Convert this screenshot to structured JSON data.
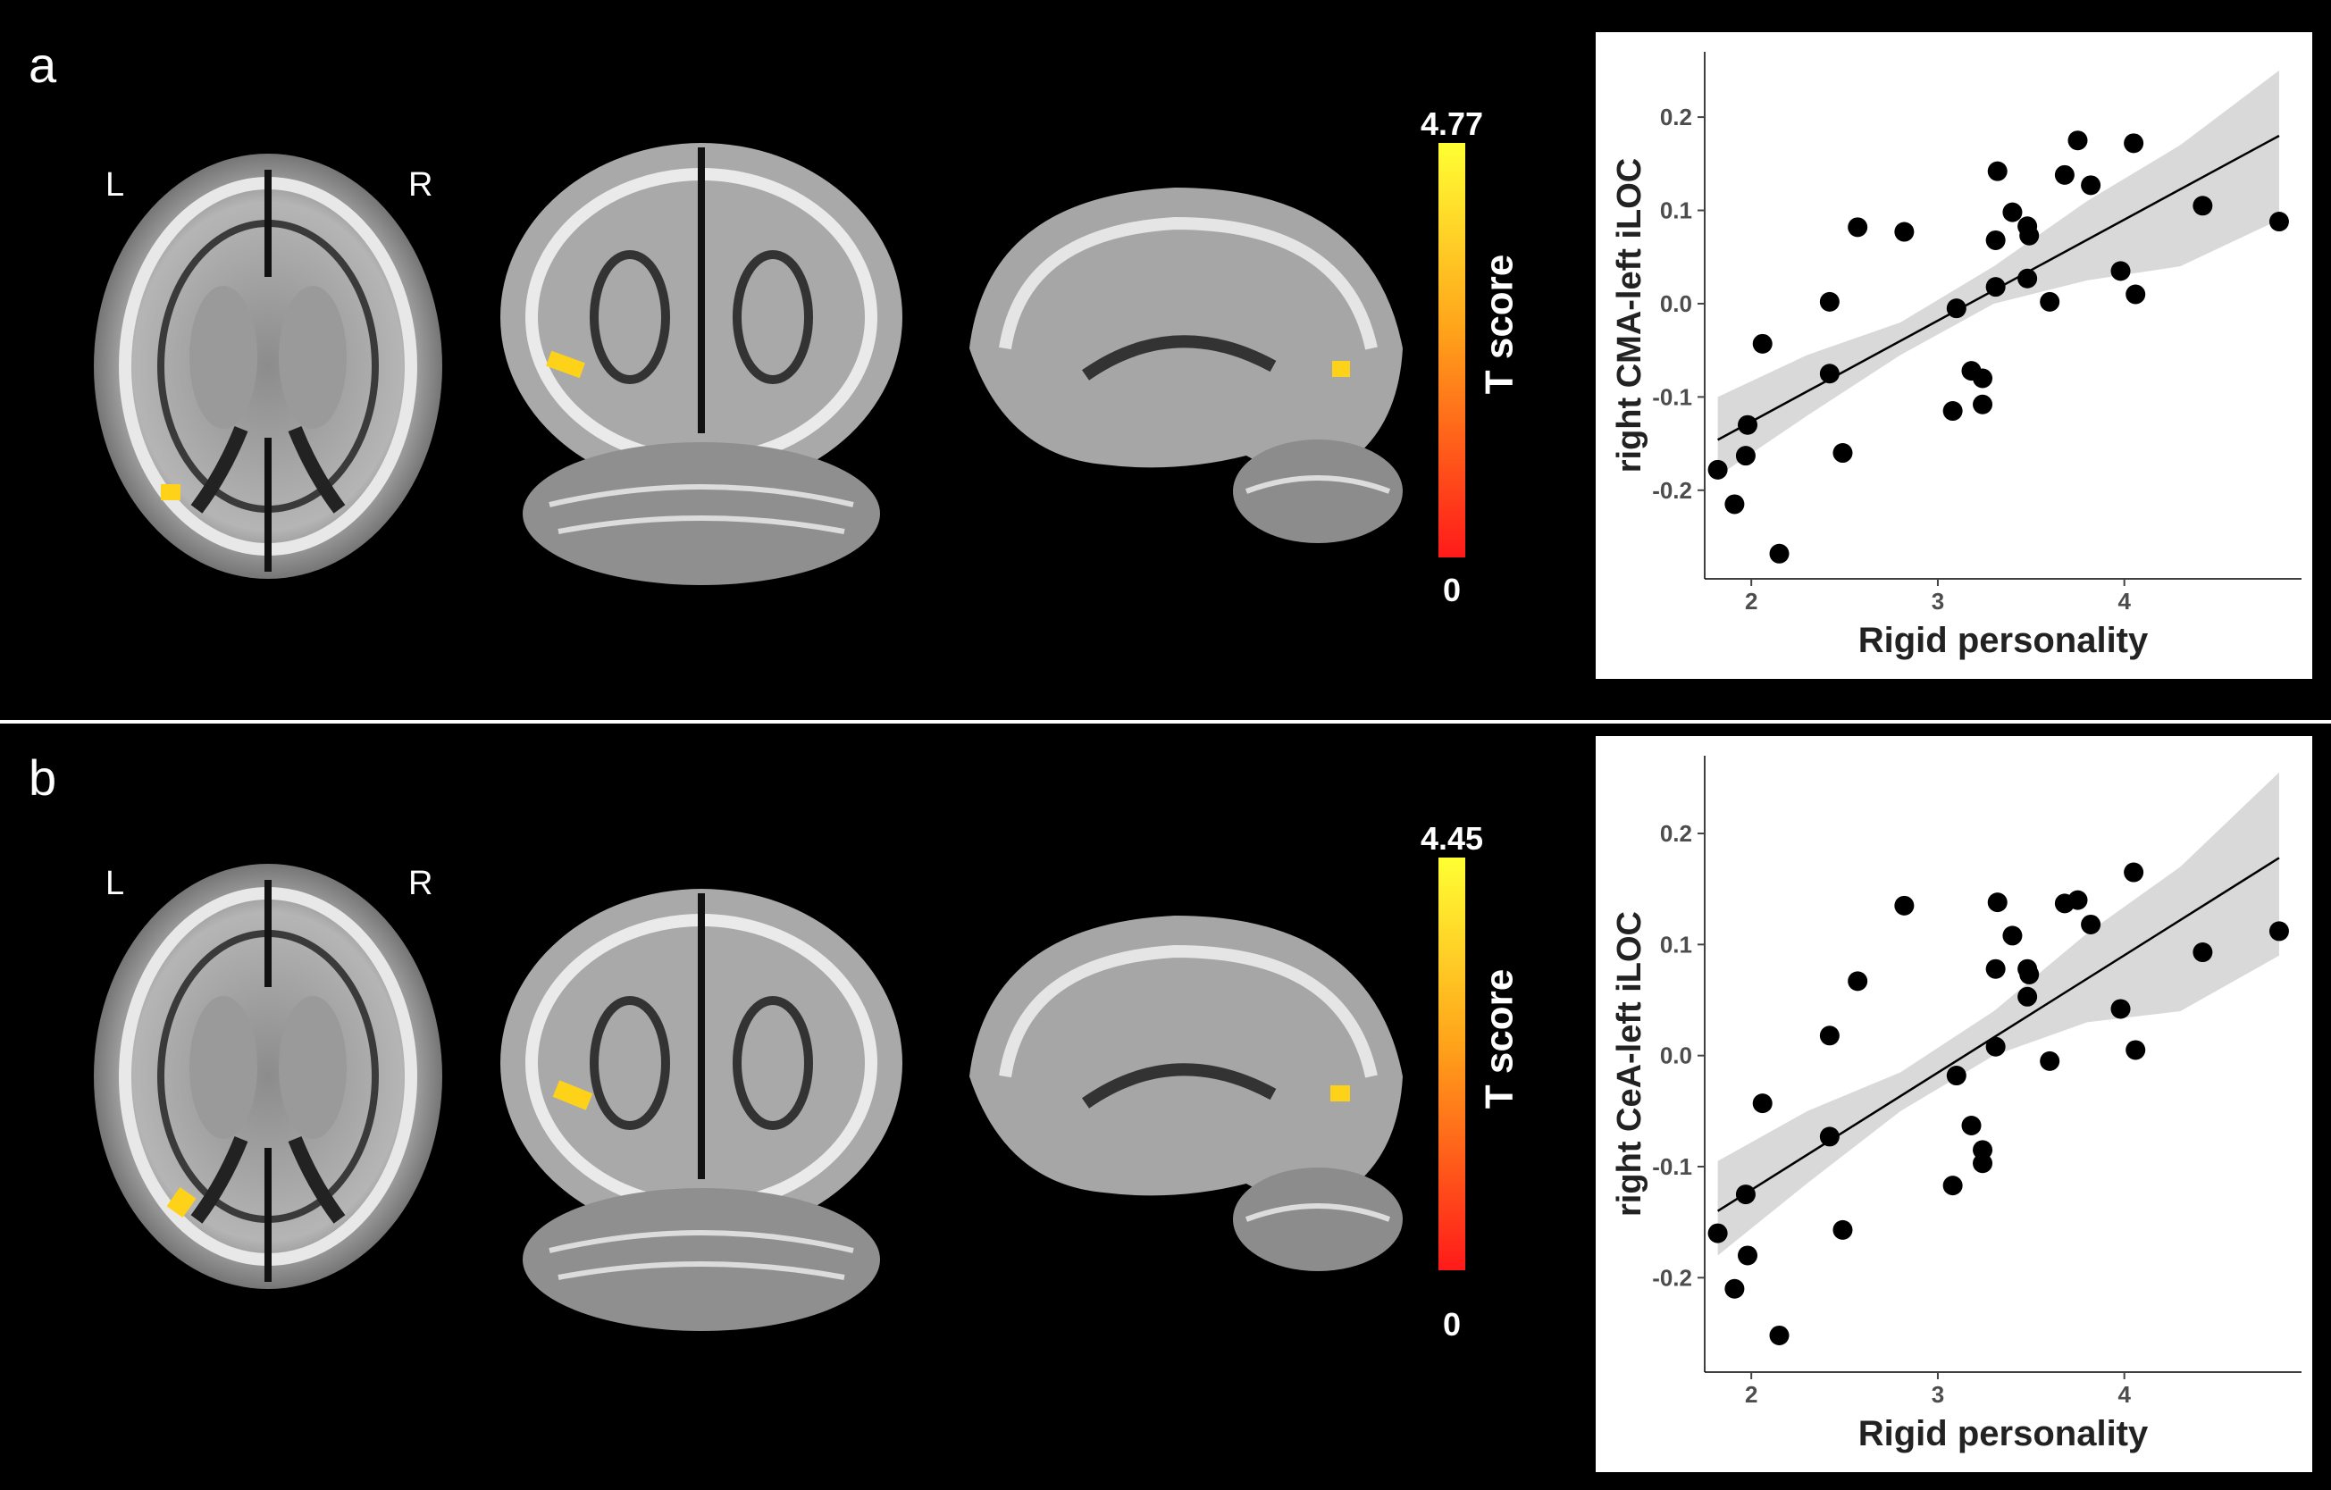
{
  "panels": [
    {
      "letter": "a",
      "left_label": "L",
      "right_label": "R",
      "colorbar": {
        "max_label": "4.77",
        "min_label": "0",
        "title": "T score",
        "low_color": "#ff1a1a",
        "high_color": "#ffff33"
      },
      "chart_data": {
        "type": "scatter",
        "xlabel": "Rigid personality",
        "ylabel": "right CMA-left iLOC",
        "xlim": [
          1.75,
          4.95
        ],
        "ylim": [
          -0.295,
          0.27
        ],
        "xticks": [
          2,
          3,
          4
        ],
        "xtick_labels": [
          "2",
          "3",
          "4"
        ],
        "yticks": [
          -0.2,
          -0.1,
          0.0,
          0.1,
          0.2
        ],
        "ytick_labels": [
          "-0.2",
          "-0.1",
          "0.0",
          "0.1",
          "0.2"
        ],
        "grid": false,
        "points": [
          [
            1.82,
            -0.178
          ],
          [
            1.91,
            -0.215
          ],
          [
            1.97,
            -0.163
          ],
          [
            1.98,
            -0.13
          ],
          [
            2.06,
            -0.043
          ],
          [
            2.15,
            -0.268
          ],
          [
            2.42,
            -0.075
          ],
          [
            2.42,
            0.002
          ],
          [
            2.49,
            -0.16
          ],
          [
            2.57,
            0.082
          ],
          [
            2.82,
            0.077
          ],
          [
            3.08,
            -0.115
          ],
          [
            3.1,
            -0.005
          ],
          [
            3.18,
            -0.072
          ],
          [
            3.24,
            -0.08
          ],
          [
            3.24,
            -0.108
          ],
          [
            3.31,
            0.018
          ],
          [
            3.31,
            0.068
          ],
          [
            3.32,
            0.142
          ],
          [
            3.4,
            0.098
          ],
          [
            3.48,
            0.083
          ],
          [
            3.48,
            0.027
          ],
          [
            3.49,
            0.073
          ],
          [
            3.6,
            0.002
          ],
          [
            3.68,
            0.138
          ],
          [
            3.75,
            0.175
          ],
          [
            3.82,
            0.127
          ],
          [
            3.98,
            0.035
          ],
          [
            4.05,
            0.172
          ],
          [
            4.06,
            0.01
          ],
          [
            4.42,
            0.105
          ],
          [
            4.83,
            0.088
          ]
        ],
        "fit": {
          "x": [
            1.82,
            4.83
          ],
          "y": [
            -0.146,
            0.18
          ]
        },
        "ci_low": [
          -0.185,
          -0.12,
          -0.055,
          0.0,
          0.025,
          0.04,
          0.09
        ],
        "ci_high": [
          -0.1,
          -0.055,
          -0.02,
          0.04,
          0.11,
          0.17,
          0.25
        ],
        "ci_x": [
          1.82,
          2.3,
          2.8,
          3.3,
          3.8,
          4.3,
          4.83
        ],
        "fill_color": "#d9d9d9"
      }
    },
    {
      "letter": "b",
      "left_label": "L",
      "right_label": "R",
      "colorbar": {
        "max_label": "4.45",
        "min_label": "0",
        "title": "T score",
        "low_color": "#ff1a1a",
        "high_color": "#ffff33"
      },
      "chart_data": {
        "type": "scatter",
        "xlabel": "Rigid personality",
        "ylabel": "right CeA-left iLOC",
        "xlim": [
          1.75,
          4.95
        ],
        "ylim": [
          -0.285,
          0.27
        ],
        "xticks": [
          2,
          3,
          4
        ],
        "xtick_labels": [
          "2",
          "3",
          "4"
        ],
        "yticks": [
          -0.2,
          -0.1,
          0.0,
          0.1,
          0.2
        ],
        "ytick_labels": [
          "-0.2",
          "-0.1",
          "0.0",
          "0.1",
          "0.2"
        ],
        "grid": false,
        "points": [
          [
            1.82,
            -0.16
          ],
          [
            1.91,
            -0.21
          ],
          [
            1.97,
            -0.125
          ],
          [
            1.98,
            -0.18
          ],
          [
            2.06,
            -0.043
          ],
          [
            2.15,
            -0.252
          ],
          [
            2.42,
            -0.073
          ],
          [
            2.42,
            0.018
          ],
          [
            2.49,
            -0.157
          ],
          [
            2.57,
            0.067
          ],
          [
            2.82,
            0.135
          ],
          [
            3.08,
            -0.117
          ],
          [
            3.1,
            -0.018
          ],
          [
            3.18,
            -0.063
          ],
          [
            3.24,
            -0.085
          ],
          [
            3.24,
            -0.097
          ],
          [
            3.31,
            0.008
          ],
          [
            3.31,
            0.078
          ],
          [
            3.32,
            0.138
          ],
          [
            3.4,
            0.108
          ],
          [
            3.48,
            0.078
          ],
          [
            3.48,
            0.053
          ],
          [
            3.49,
            0.073
          ],
          [
            3.6,
            -0.005
          ],
          [
            3.68,
            0.137
          ],
          [
            3.75,
            0.14
          ],
          [
            3.82,
            0.118
          ],
          [
            3.98,
            0.042
          ],
          [
            4.05,
            0.165
          ],
          [
            4.06,
            0.005
          ],
          [
            4.42,
            0.093
          ],
          [
            4.83,
            0.112
          ]
        ],
        "fit": {
          "x": [
            1.82,
            4.83
          ],
          "y": [
            -0.14,
            0.178
          ]
        },
        "ci_low": [
          -0.18,
          -0.115,
          -0.05,
          0.0,
          0.03,
          0.04,
          0.09
        ],
        "ci_high": [
          -0.095,
          -0.05,
          -0.015,
          0.04,
          0.11,
          0.17,
          0.255
        ],
        "ci_x": [
          1.82,
          2.3,
          2.8,
          3.3,
          3.8,
          4.3,
          4.83
        ],
        "fill_color": "#d9d9d9"
      }
    }
  ]
}
